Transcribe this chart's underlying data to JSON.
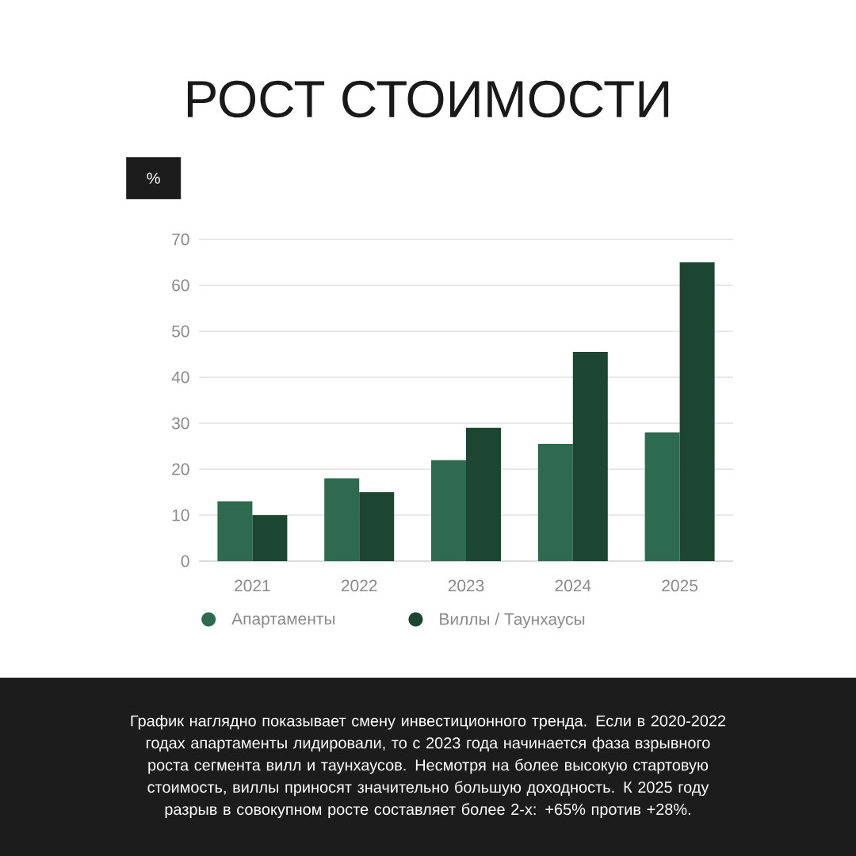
{
  "chart_data": {
    "type": "bar",
    "title": "РОСТ СТОИМОСТИ",
    "ylabel": "%",
    "categories": [
      "2021",
      "2022",
      "2023",
      "2024",
      "2025"
    ],
    "series": [
      {
        "name": "Апартаменты",
        "color": "#2e6a50",
        "values": [
          13,
          18,
          22,
          25.5,
          28
        ]
      },
      {
        "name": "Виллы / Таунхаусы",
        "color": "#1c4532",
        "values": [
          10,
          15,
          29,
          45.5,
          65
        ]
      }
    ],
    "ylim": [
      0,
      70
    ],
    "yticks": [
      0,
      10,
      20,
      30,
      40,
      50,
      60,
      70
    ],
    "grid": "y",
    "legend": "bottom",
    "annotations": [
      "График наглядно показывает смену инвестиционного тренда. Если в 2020-2022 годах апартаменты лидировали, то с 2023 года начинается фаза взрывного роста сегмента вилл и таунхаусов. Несмотря на более высокую стартовую стоимость, виллы приносят значительно большую доходность. К 2025 году разрыв в совокупном росте составляет более 2-х: +65% против +28%."
    ]
  }
}
